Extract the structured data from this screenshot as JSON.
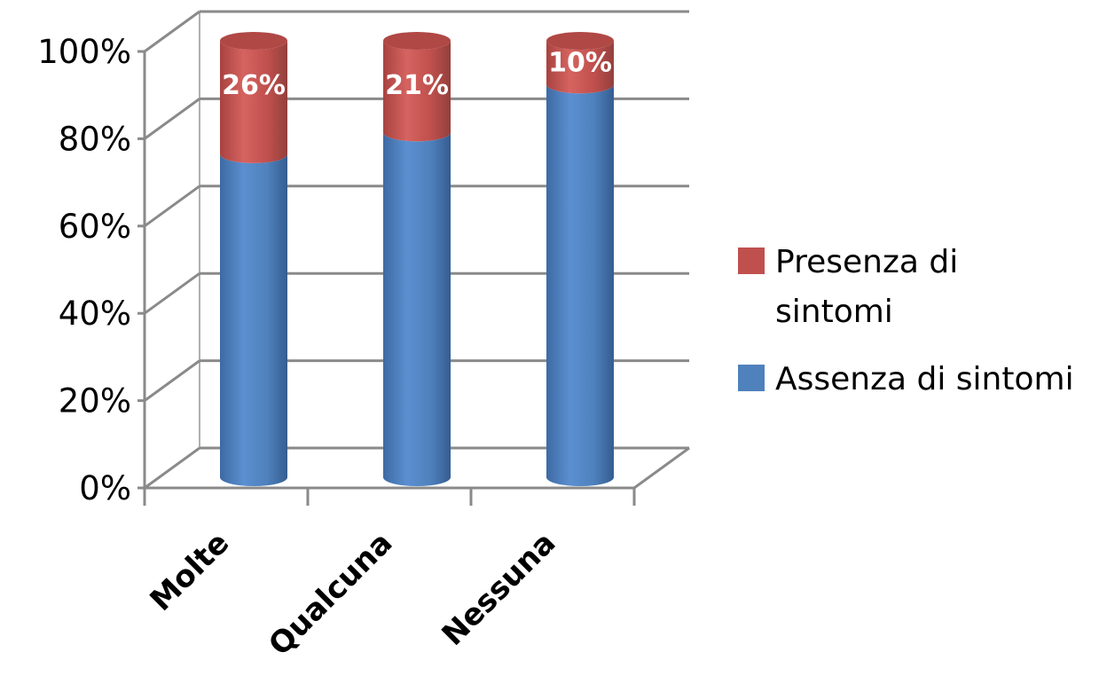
{
  "chart_data": {
    "type": "bar",
    "stacked": true,
    "percent_stacked": true,
    "style": "3d-cylinder",
    "title": "",
    "xlabel": "",
    "ylabel": "",
    "categories": [
      "Molte",
      "Qualcuna",
      "Nessuna"
    ],
    "ylim": [
      0,
      100
    ],
    "y_ticks": [
      "0%",
      "20%",
      "40%",
      "60%",
      "80%",
      "100%"
    ],
    "grid": true,
    "legend_position": "right",
    "series": [
      {
        "name": "Assenza di sintomi",
        "values": [
          74,
          79,
          90
        ],
        "color": "#4F81BD"
      },
      {
        "name": "Presenza di sintomi",
        "values": [
          26,
          21,
          10
        ],
        "color": "#C0504D",
        "data_labels": [
          "26%",
          "21%",
          "10%"
        ]
      }
    ],
    "legend": [
      {
        "lines": [
          "Presenza di",
          "sintomi"
        ],
        "color": "#C0504D"
      },
      {
        "lines": [
          "Assenza di sintomi"
        ],
        "color": "#4F81BD"
      }
    ]
  }
}
